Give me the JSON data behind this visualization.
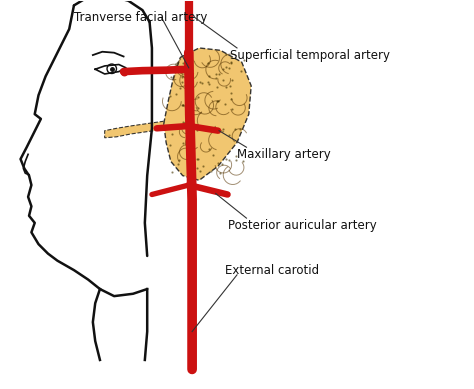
{
  "background_color": "#ffffff",
  "gland_color": "#F0C060",
  "gland_edge_color": "#222222",
  "artery_color": "#CC1111",
  "face_edge_color": "#111111",
  "text_color": "#111111",
  "labels": {
    "tranverse_facial": "Tranverse facial artery",
    "superficial_temporal": "Superficial temporal artery",
    "maxillary": "Maxillary artery",
    "posterior_auricular": "Posterior auricular artery",
    "external_carotid": "External carotid"
  },
  "figsize": [
    4.74,
    3.89
  ],
  "dpi": 100
}
